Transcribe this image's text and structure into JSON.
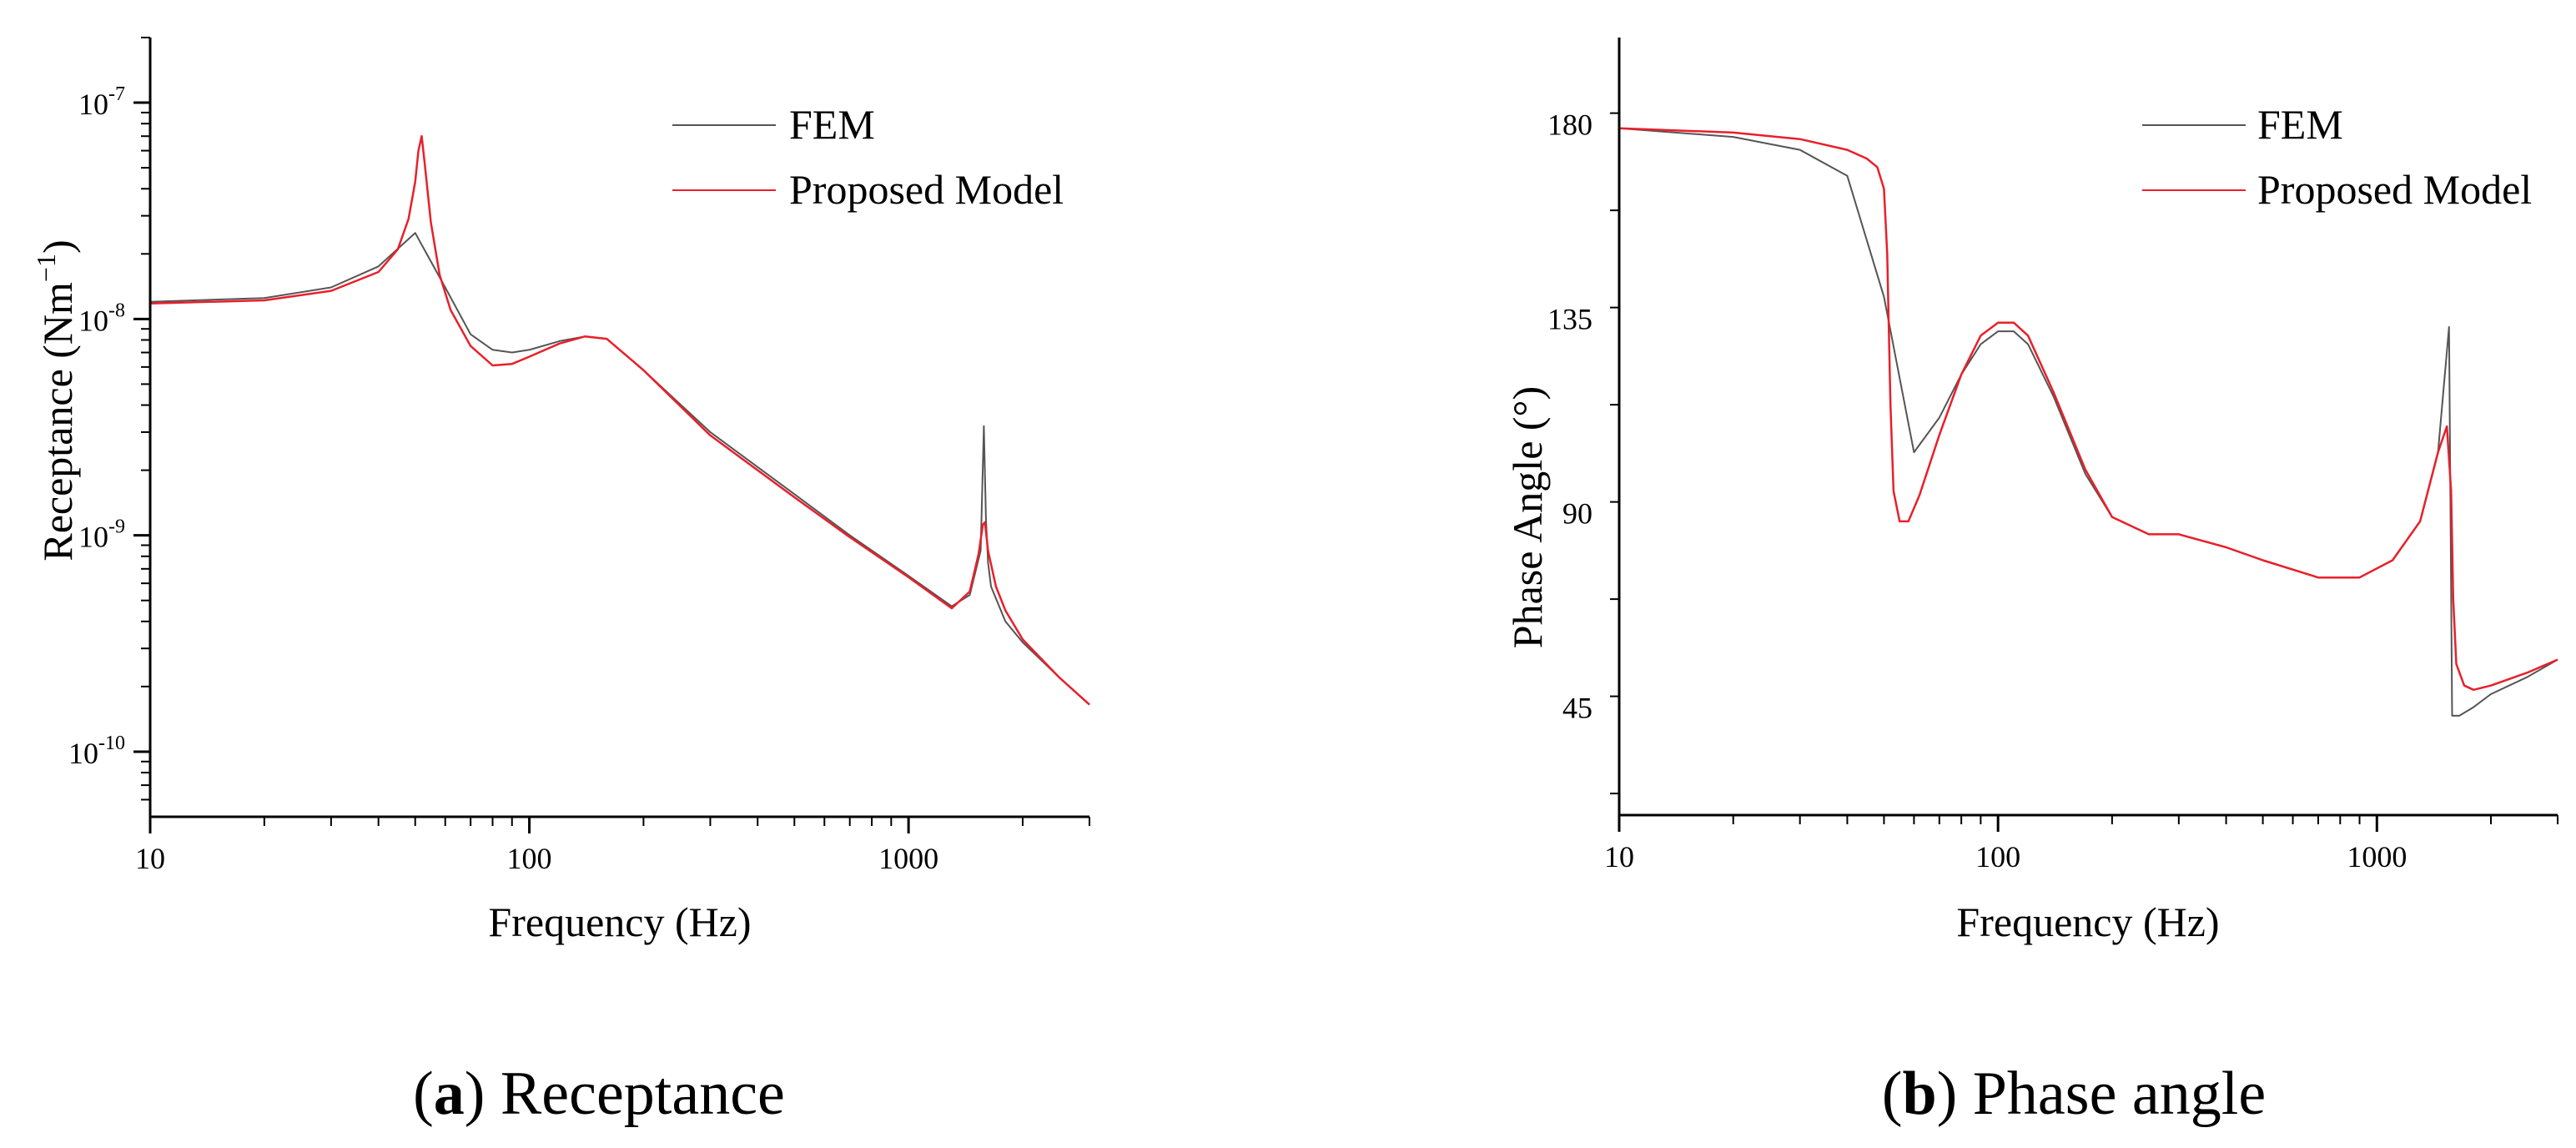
{
  "chart_data": [
    {
      "type": "line",
      "title": "",
      "caption_label": "a",
      "caption_text": " Receptance",
      "xlabel": "Frequency (Hz)",
      "ylabel": "Receptance (Nm",
      "ylabel_sup": "−1",
      "ylabel_close": ")",
      "xscale": "log",
      "yscale": "log",
      "xlim": [
        10,
        3000
      ],
      "ylim": [
        5e-11,
        2e-07
      ],
      "xticks": [
        10,
        100,
        1000
      ],
      "xtick_labels": [
        "10",
        "100",
        "1000"
      ],
      "yticks": [
        1e-10,
        1e-09,
        1e-08,
        1e-07
      ],
      "ytick_base": [
        "10",
        "10",
        "10",
        "10"
      ],
      "ytick_exp": [
        "-10",
        "-9",
        "-8",
        "-7"
      ],
      "legend_position": "top-right",
      "series": [
        {
          "name": "FEM",
          "color": "#555555",
          "x": [
            10,
            20,
            30,
            40,
            50,
            60,
            70,
            80,
            90,
            100,
            120,
            140,
            160,
            200,
            300,
            500,
            700,
            1000,
            1300,
            1450,
            1550,
            1580,
            1600,
            1620,
            1650,
            1800,
            2000,
            2500,
            3000
          ],
          "y": [
            1.2e-08,
            1.25e-08,
            1.4e-08,
            1.75e-08,
            2.5e-08,
            1.4e-08,
            8.5e-09,
            7.2e-09,
            7e-09,
            7.2e-09,
            7.9e-09,
            8.3e-09,
            8.1e-09,
            5.8e-09,
            3e-09,
            1.55e-09,
            1e-09,
            6.5e-10,
            4.7e-10,
            5.3e-10,
            8.5e-10,
            3.2e-09,
            1.2e-09,
            7.5e-10,
            5.8e-10,
            4e-10,
            3.2e-10,
            2.2e-10,
            1.65e-10
          ]
        },
        {
          "name": "Proposed Model",
          "color": "#e8202a",
          "x": [
            10,
            20,
            30,
            40,
            45,
            48,
            50,
            51,
            52,
            53,
            55,
            58,
            62,
            70,
            80,
            90,
            100,
            120,
            140,
            160,
            200,
            300,
            500,
            700,
            1000,
            1300,
            1450,
            1530,
            1570,
            1590,
            1620,
            1700,
            1800,
            2000,
            2500,
            3000
          ],
          "y": [
            1.18e-08,
            1.22e-08,
            1.35e-08,
            1.65e-08,
            2.1e-08,
            2.9e-08,
            4.3e-08,
            6e-08,
            7e-08,
            5.2e-08,
            2.8e-08,
            1.6e-08,
            1.1e-08,
            7.5e-09,
            6.1e-09,
            6.2e-09,
            6.7e-09,
            7.7e-09,
            8.3e-09,
            8.1e-09,
            5.8e-09,
            2.9e-09,
            1.5e-09,
            9.8e-10,
            6.4e-10,
            4.6e-10,
            5.5e-10,
            8.2e-10,
            1.12e-09,
            1.15e-09,
            8.5e-10,
            5.8e-10,
            4.5e-10,
            3.3e-10,
            2.2e-10,
            1.65e-10
          ]
        }
      ]
    },
    {
      "type": "line",
      "title": "",
      "caption_label": "b",
      "caption_text": " Phase angle",
      "xlabel": "Frequency (Hz)",
      "ylabel": "Phase Angle (°)",
      "xscale": "log",
      "yscale": "linear",
      "xlim": [
        10,
        3000
      ],
      "ylim": [
        20,
        200
      ],
      "xticks": [
        10,
        100,
        1000
      ],
      "xtick_labels": [
        "10",
        "100",
        "1000"
      ],
      "yticks": [
        45,
        90,
        135,
        180
      ],
      "ytick_labels": [
        "45",
        "90",
        "135",
        "180"
      ],
      "legend_position": "top-right",
      "series": [
        {
          "name": "FEM",
          "color": "#555555",
          "x": [
            10,
            20,
            30,
            40,
            50,
            60,
            70,
            80,
            90,
            100,
            110,
            120,
            140,
            170,
            200,
            250,
            300,
            400,
            500,
            700,
            900,
            1100,
            1300,
            1450,
            1550,
            1580,
            1600,
            1650,
            1800,
            2000,
            2500,
            3000
          ],
          "y": [
            179,
            177,
            174,
            168,
            140,
            104,
            112,
            122,
            129,
            132,
            132,
            129,
            117,
            99,
            89,
            85,
            85,
            82,
            79,
            75,
            75,
            79,
            88,
            104,
            133,
            43,
            43,
            43,
            45,
            48,
            52,
            56
          ]
        },
        {
          "name": "Proposed Model",
          "color": "#e8202a",
          "x": [
            10,
            20,
            30,
            40,
            45,
            48,
            50,
            51,
            52,
            53,
            55,
            58,
            62,
            70,
            80,
            90,
            100,
            110,
            120,
            140,
            170,
            200,
            250,
            300,
            400,
            500,
            700,
            900,
            1100,
            1300,
            1450,
            1530,
            1570,
            1590,
            1620,
            1700,
            1800,
            2000,
            2500,
            3000
          ],
          "y": [
            179,
            178,
            176.5,
            174,
            172,
            170,
            165,
            150,
            115,
            95,
            88,
            88,
            94,
            108,
            122,
            131,
            134,
            134,
            131,
            118,
            100,
            89,
            85,
            85,
            82,
            79,
            75,
            75,
            79,
            88,
            104,
            110,
            95,
            70,
            55,
            50,
            49,
            50,
            53,
            56
          ]
        }
      ]
    }
  ]
}
